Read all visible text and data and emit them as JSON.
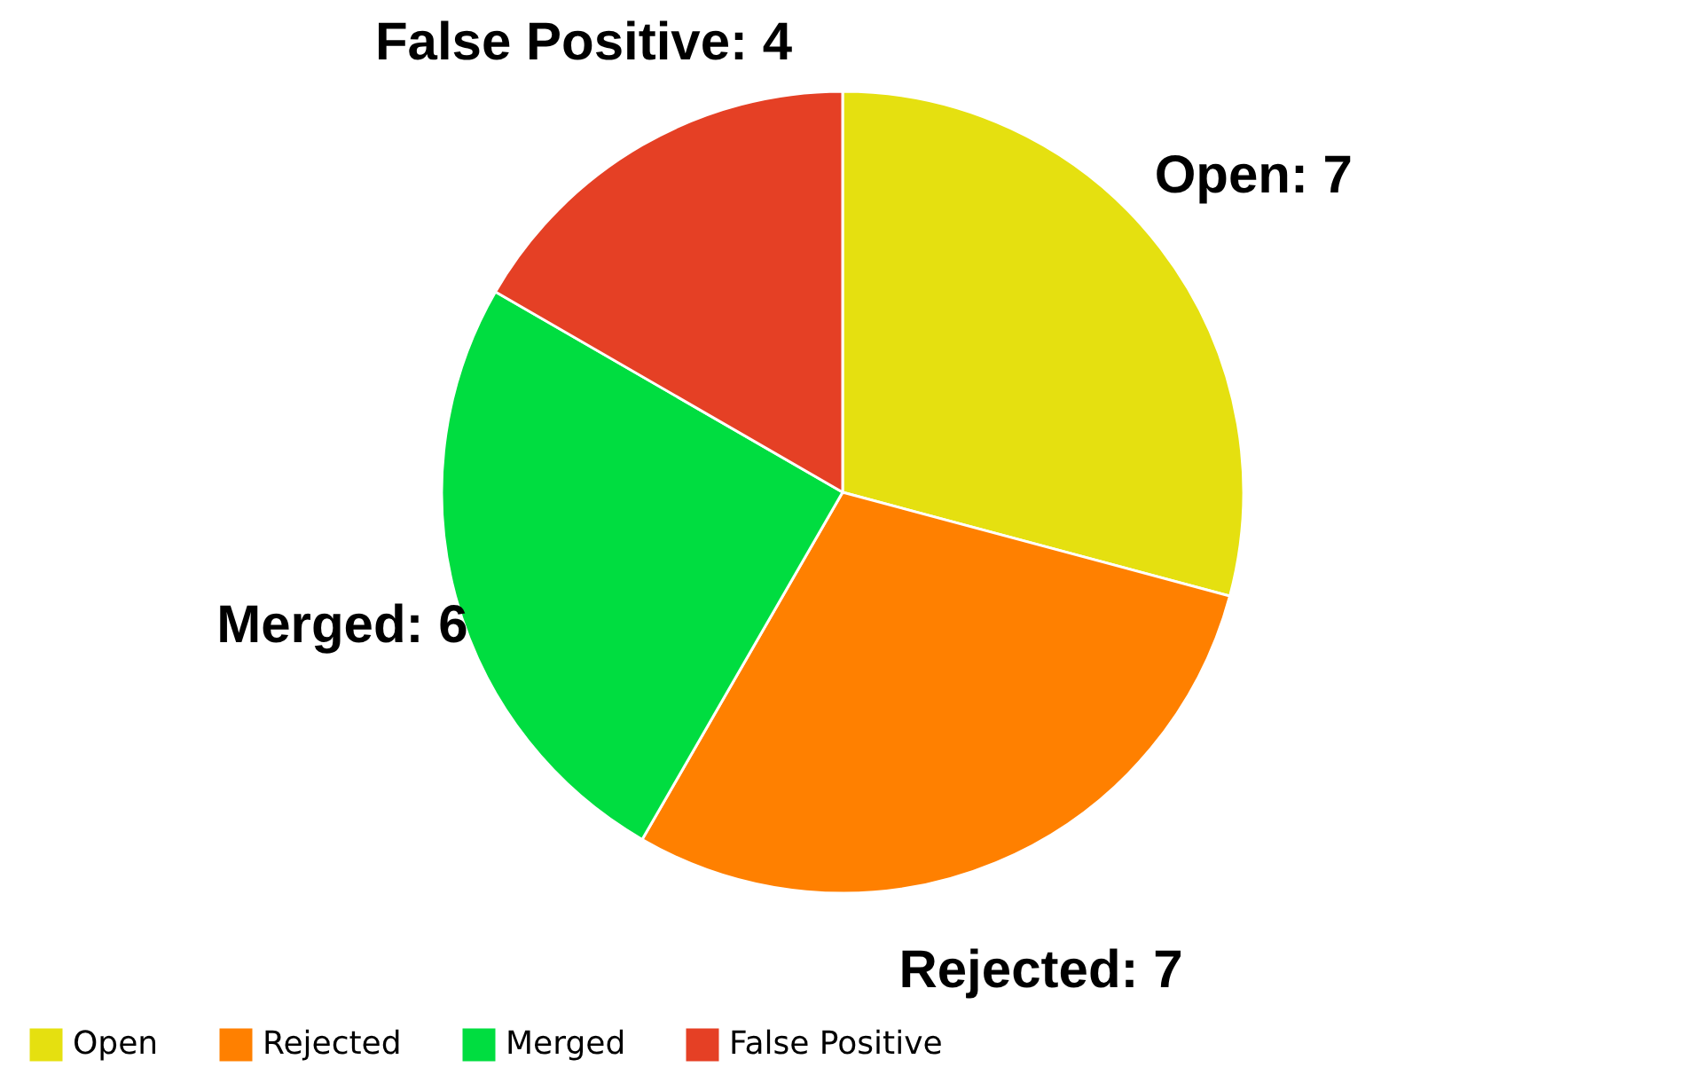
{
  "chart_data": {
    "type": "pie",
    "categories": [
      "Open",
      "Rejected",
      "Merged",
      "False Positive"
    ],
    "values": [
      7,
      7,
      6,
      4
    ],
    "colors": [
      "#e5e010",
      "#ff8000",
      "#00dd40",
      "#e54025"
    ],
    "value_labels": [
      "Open: 7",
      "Rejected: 7",
      "Merged: 6",
      "False Positive: 4"
    ],
    "legend": "bottom"
  }
}
